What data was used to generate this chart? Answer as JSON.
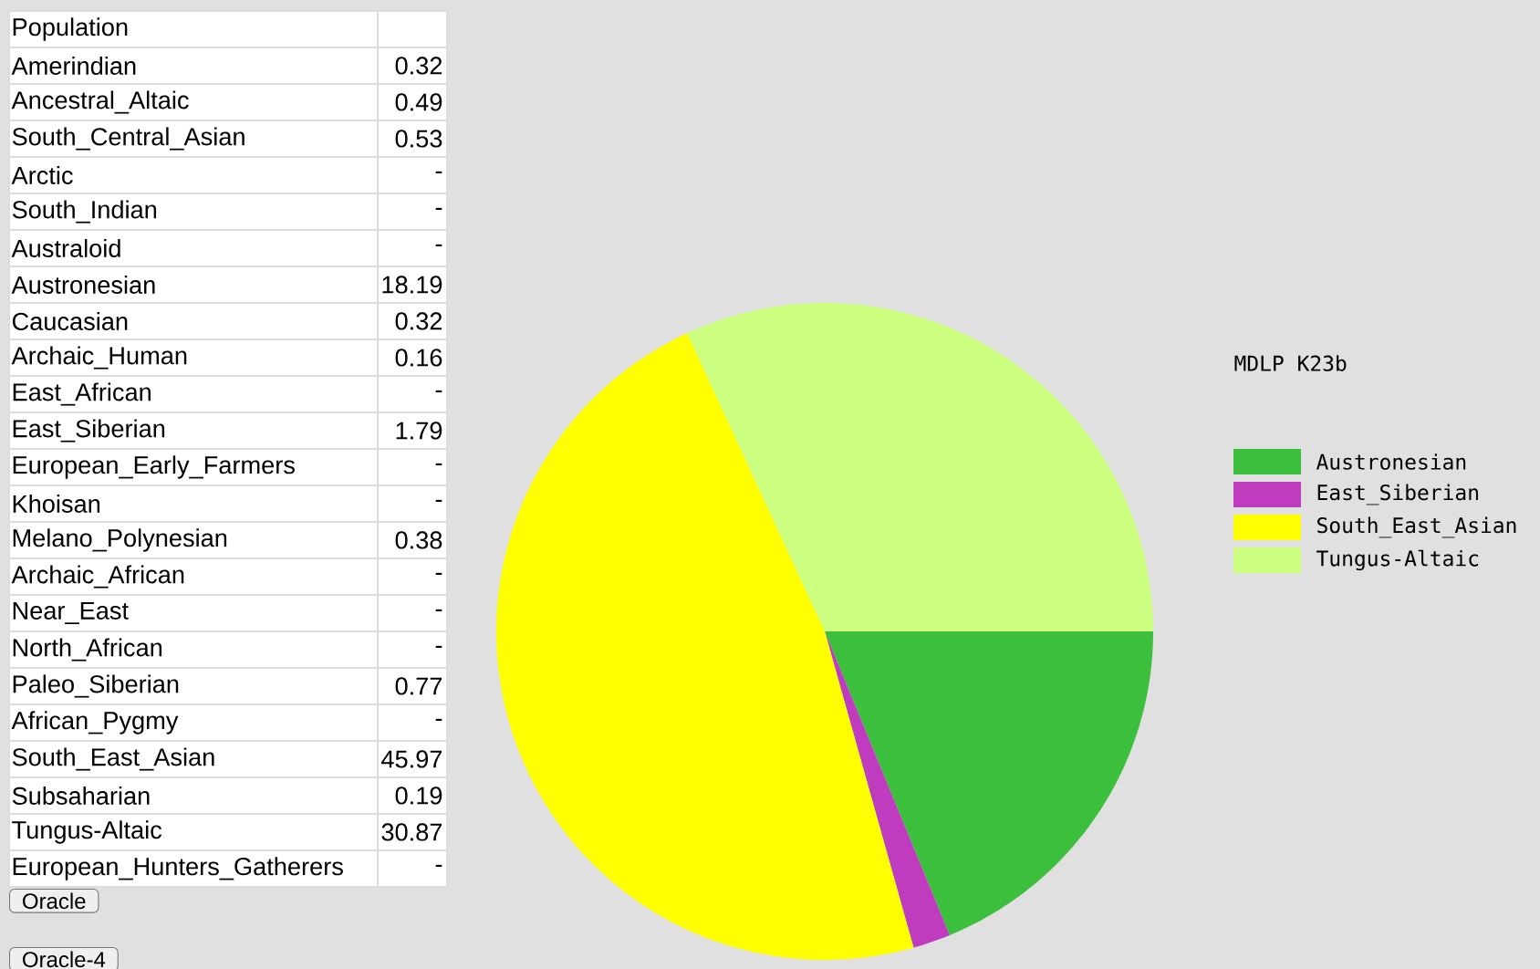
{
  "chart_data": [
    {
      "type": "other",
      "title": "Population",
      "categories": [
        "Amerindian",
        "Ancestral_Altaic",
        "South_Central_Asian",
        "Arctic",
        "South_Indian",
        "Australoid",
        "Austronesian",
        "Caucasian",
        "Archaic_Human",
        "East_African",
        "East_Siberian",
        "European_Early_Farmers",
        "Khoisan",
        "Melano_Polynesian",
        "Archaic_African",
        "Near_East",
        "North_African",
        "Paleo_Siberian",
        "African_Pygmy",
        "South_East_Asian",
        "Subsaharian",
        "Tungus-Altaic",
        "European_Hunters_Gatherers"
      ],
      "value_labels": [
        "0.32",
        "0.49",
        "0.53",
        "-",
        "-",
        "-",
        "18.19",
        "0.32",
        "0.16",
        "-",
        "1.79",
        "-",
        "-",
        "0.38",
        "-",
        "-",
        "-",
        "0.77",
        "-",
        "45.97",
        "0.19",
        "30.87",
        "-"
      ],
      "annotations": [
        "Oracle",
        "Oracle-4"
      ]
    },
    {
      "type": "pie",
      "legend_title": "MDLP K23b",
      "legend": "right",
      "categories": [
        "Austronesian",
        "East_Siberian",
        "South_East_Asian",
        "Tungus-Altaic"
      ],
      "values": [
        18.79,
        1.85,
        47.48,
        31.88
      ],
      "colors": [
        "#3cbf3c",
        "#bf3cbf",
        "#ffff00",
        "#ccff80"
      ]
    }
  ]
}
